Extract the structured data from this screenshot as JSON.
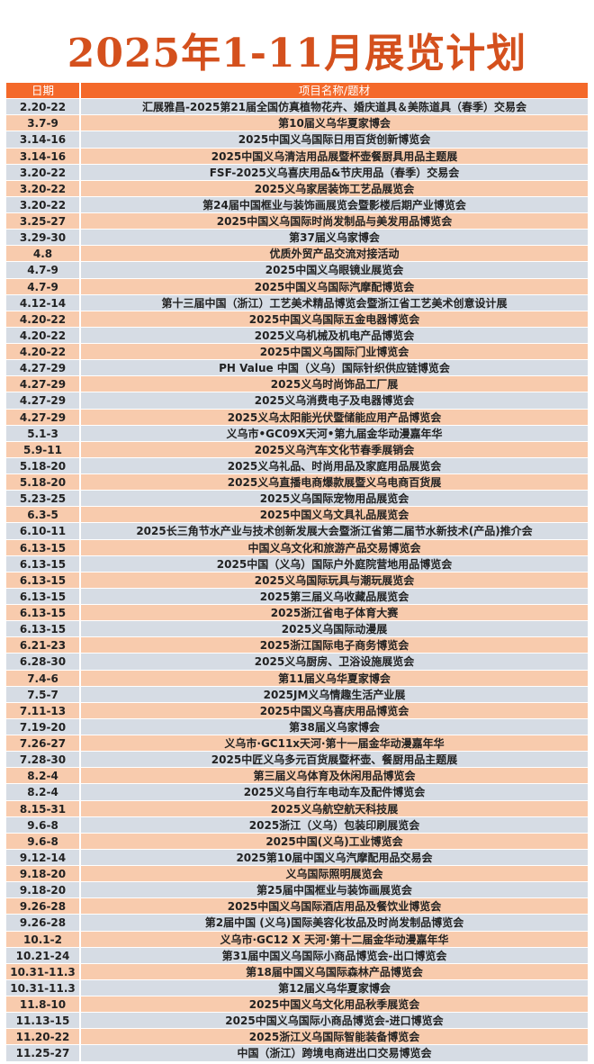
{
  "title": "2025年1-11月展览计划",
  "colors": {
    "title": "#d4501d",
    "header_bg": "#f4692a",
    "row_grey": "#d6dce4",
    "row_orange": "#f8cbad"
  },
  "table": {
    "headers": [
      "日期",
      "项目名称/题材"
    ],
    "rows": [
      [
        "2.20-22",
        "汇展雅昌-2025第21届全国仿真植物花卉、婚庆道具＆美陈道具（春季）交易会"
      ],
      [
        "3.7-9",
        "第10届义乌华夏家博会"
      ],
      [
        "3.14-16",
        "2025中国义乌国际日用百货创新博览会"
      ],
      [
        "3.14-16",
        "2025中国义乌清洁用品展暨杯壶餐厨具用品主题展"
      ],
      [
        "3.20-22",
        "FSF-2025义乌喜庆用品&节庆用品（春季）交易会"
      ],
      [
        "3.20-22",
        "2025义乌家居装饰工艺品展览会"
      ],
      [
        "3.20-22",
        "第24届中国框业与装饰画展览会暨影楼后期产业博览会"
      ],
      [
        "3.25-27",
        "2025中国义乌国际时尚发制品与美发用品博览会"
      ],
      [
        "3.29-30",
        "第37届义乌家博会"
      ],
      [
        "4.8",
        "优质外贸产品交流对接活动"
      ],
      [
        "4.7-9",
        "2025中国义乌眼镜业展览会"
      ],
      [
        "4.7-9",
        "2025中国义乌国际汽摩配博览会"
      ],
      [
        "4.12-14",
        "第十三届中国（浙江）工艺美术精品博览会暨浙江省工艺美术创意设计展"
      ],
      [
        "4.20-22",
        "2025中国义乌国际五金电器博览会"
      ],
      [
        "4.20-22",
        "2025义乌机械及机电产品博览会"
      ],
      [
        "4.20-22",
        "2025中国义乌国际门业博览会"
      ],
      [
        "4.27-29",
        "PH Value 中国（义乌）国际针织供应链博览会"
      ],
      [
        "4.27-29",
        "2025义乌时尚饰品工厂展"
      ],
      [
        "4.27-29",
        "2025义乌消费电子及电器博览会"
      ],
      [
        "4.27-29",
        "2025义乌太阳能光伏暨储能应用产品博览会"
      ],
      [
        "5.1-3",
        "义乌市•GC09X天河•第九届金华动漫嘉年华"
      ],
      [
        "5.9-11",
        "2025义乌汽车文化节春季展销会"
      ],
      [
        "5.18-20",
        "2025义乌礼品、时尚用品及家庭用品展览会"
      ],
      [
        "5.18-20",
        "2025义乌直播电商爆款展暨义乌电商百货展"
      ],
      [
        "5.23-25",
        "2025义乌国际宠物用品展览会"
      ],
      [
        "6.3-5",
        "2025中国义乌文具礼品展览会"
      ],
      [
        "6.10-11",
        "2025长三角节水产业与技术创新发展大会暨浙江省第二届节水新技术(产品)推介会"
      ],
      [
        "6.13-15",
        "中国义乌文化和旅游产品交易博览会"
      ],
      [
        "6.13-15",
        "2025中国（义乌）国际户外庭院营地用品博览会"
      ],
      [
        "6.13-15",
        "2025义乌国际玩具与潮玩展览会"
      ],
      [
        "6.13-15",
        "2025第三届义乌收藏品展览会"
      ],
      [
        "6.13-15",
        "2025浙江省电子体育大赛"
      ],
      [
        "6.13-15",
        "2025义乌国际动漫展"
      ],
      [
        "6.21-23",
        "2025浙江国际电子商务博览会"
      ],
      [
        "6.28-30",
        "2025义乌厨房、卫浴设施展览会"
      ],
      [
        "7.4-6",
        "第11届义乌华夏家博会"
      ],
      [
        "7.5-7",
        "2025JM义乌情趣生活产业展"
      ],
      [
        "7.11-13",
        "2025中国义乌喜庆用品博览会"
      ],
      [
        "7.19-20",
        "第38届义乌家博会"
      ],
      [
        "7.26-27",
        "义乌市·GC11x天河·第十一届金华动漫嘉年华"
      ],
      [
        "7.28-30",
        "2025中匠义乌多元百货展暨杯壶、餐厨用品主题展"
      ],
      [
        "8.2-4",
        "第三届义乌体育及休闲用品博览会"
      ],
      [
        "8.2-4",
        "2025义乌自行车电动车及配件博览会"
      ],
      [
        "8.15-31",
        "2025义乌航空航天科技展"
      ],
      [
        "9.6-8",
        "2025浙江（义乌）包装印刷展览会"
      ],
      [
        "9.6-8",
        "2025中国(义乌)工业博览会"
      ],
      [
        "9.12-14",
        "2025第10届中国义乌汽摩配用品交易会"
      ],
      [
        "9.18-20",
        "义乌国际照明展览会"
      ],
      [
        "9.18-20",
        "第25届中国框业与装饰画展览会"
      ],
      [
        "9.26-28",
        "2025中国义乌国际酒店用品及餐饮业博览会"
      ],
      [
        "9.26-28",
        "第2届中国 (义乌)国际美容化妆品及时尚发制品博览会"
      ],
      [
        "10.1-2",
        "义乌市·GC12 X 天河·第十二届金华动漫嘉年华"
      ],
      [
        "10.21-24",
        "第31届中国义乌国际小商品博览会-出口博览会"
      ],
      [
        "10.31-11.3",
        "第18届中国义乌国际森林产品博览会"
      ],
      [
        "10.31-11.3",
        "第12届义乌华夏家博会"
      ],
      [
        "11.8-10",
        "2025中国义乌文化用品秋季展览会"
      ],
      [
        "11.13-15",
        "2025中国义乌国际小商品博览会-进口博览会"
      ],
      [
        "11.20-22",
        "2025浙江义乌国际智能装备博览会"
      ],
      [
        "11.25-27",
        "中国（浙江）跨境电商进出口交易博览会"
      ]
    ]
  }
}
